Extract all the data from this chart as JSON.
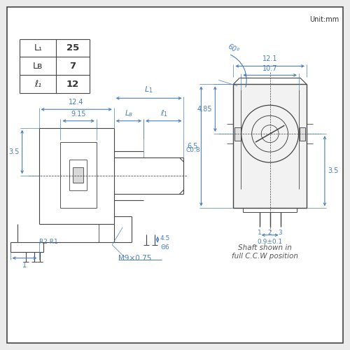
{
  "bg_color": "#ebebeb",
  "panel_color": "#ffffff",
  "line_color": "#444444",
  "dim_color": "#4a7fba",
  "text_color": "#333333",
  "unit_text": "Unit:mm",
  "table_labels": [
    "L₁",
    "Lʙ",
    "ℓ₁"
  ],
  "table_values": [
    "25",
    "7",
    "12"
  ],
  "shaft_text": "Shaft shown in\nfull C.C.W position",
  "M9_text": "M9×0.75",
  "phi6_text": "Θ6",
  "pin_spacing_text": "0.9±0.1"
}
